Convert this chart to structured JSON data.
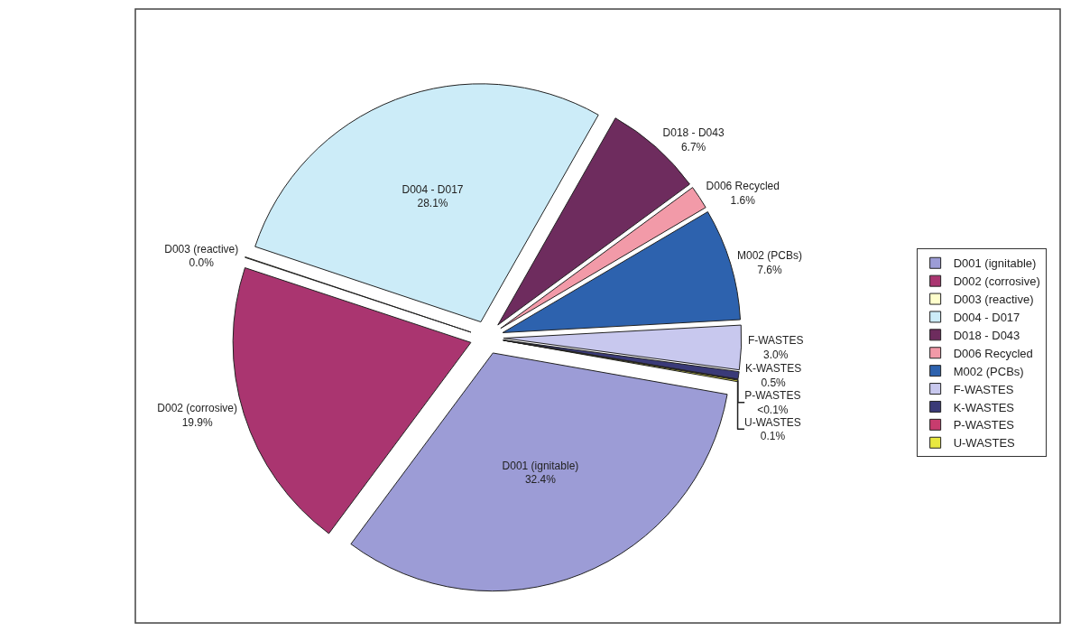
{
  "chart_data": {
    "type": "pie",
    "categories": [
      "D001 (ignitable)",
      "D002 (corrosive)",
      "D003 (reactive)",
      "D004 - D017",
      "D018 - D043",
      "D006 Recycled",
      "M002 (PCBs)",
      "F-WASTES",
      "K-WASTES",
      "P-WASTES",
      "U-WASTES"
    ],
    "values": [
      32.4,
      19.9,
      0.04,
      28.1,
      6.7,
      1.6,
      7.6,
      3.0,
      0.5,
      0.05,
      0.1
    ],
    "value_labels": [
      "32.4%",
      "19.9%",
      "0.0%",
      "28.1%",
      "6.7%",
      "1.6%",
      "7.6%",
      "3.0%",
      "0.5%",
      "<0.1%",
      "0.1%"
    ],
    "colors": [
      "#9c9cd6",
      "#aa3570",
      "#ffffcc",
      "#ccecf8",
      "#6e2c5e",
      "#f29aa8",
      "#2d62ae",
      "#c8c8ee",
      "#3a3a78",
      "#c83c6e",
      "#e8e840"
    ],
    "legend": "right"
  }
}
